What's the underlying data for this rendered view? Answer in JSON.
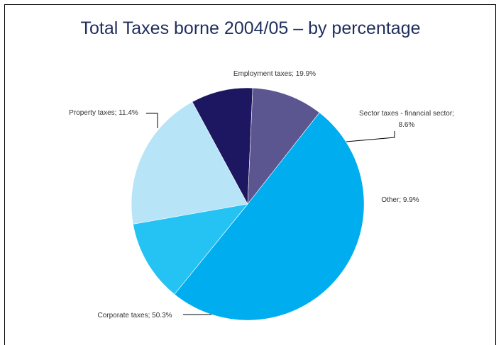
{
  "chart_data": {
    "type": "pie",
    "title": "Total Taxes borne 2004/05 – by percentage",
    "slices": [
      {
        "label": "Employment taxes; 19.9%",
        "category": "Employment taxes",
        "value": 19.9,
        "color": "#b8e4f7"
      },
      {
        "label": "Sector taxes - financial sector;",
        "label2": "8.6%",
        "category": "Sector taxes - financial sector",
        "value": 8.6,
        "color": "#1c1760"
      },
      {
        "label": "Other; 9.9%",
        "category": "Other",
        "value": 9.9,
        "color": "#5b568f"
      },
      {
        "label": "Corporate taxes; 50.3%",
        "category": "Corporate taxes",
        "value": 50.3,
        "color": "#00aeef"
      },
      {
        "label": "Property taxes; 11.4%",
        "category": "Property taxes",
        "value": 11.4,
        "color": "#25c3f4"
      }
    ],
    "legend": "none",
    "data_labels": "outside with leader lines"
  },
  "colors": {
    "title": "#1f2f5c",
    "frame": "#000000",
    "slice_border": "#ffffff"
  }
}
